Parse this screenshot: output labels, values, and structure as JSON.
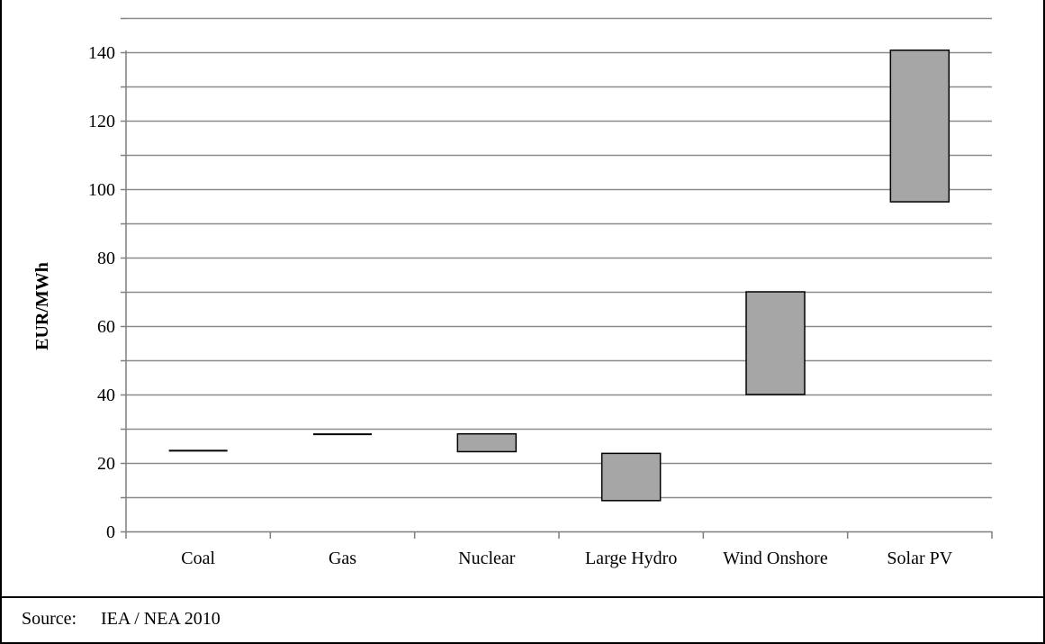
{
  "chart_data": {
    "type": "bar",
    "subtype": "floating-range",
    "ylabel": "EUR/MWh",
    "xlabel": "",
    "ylim": [
      0,
      150
    ],
    "yticks": [
      0,
      20,
      40,
      60,
      80,
      100,
      120,
      140
    ],
    "minor_gridlines": [
      10,
      30,
      50,
      70,
      90,
      110,
      130,
      150
    ],
    "grid": true,
    "categories": [
      "Coal",
      "Gas",
      "Nuclear",
      "Large Hydro",
      "Wind Onshore",
      "Solar PV"
    ],
    "ranges": [
      {
        "low": 23.6,
        "high": 23.6
      },
      {
        "low": 28.0,
        "high": 28.4
      },
      {
        "low": 23.3,
        "high": 28.5
      },
      {
        "low": 9.0,
        "high": 22.8
      },
      {
        "low": 40.0,
        "high": 70.0
      },
      {
        "low": 96.3,
        "high": 140.6
      }
    ],
    "bar_color": "#a6a6a6",
    "gridline_color": "#8c8c8c"
  },
  "source": {
    "label": "Source:",
    "text": "IEA / NEA 2010"
  }
}
